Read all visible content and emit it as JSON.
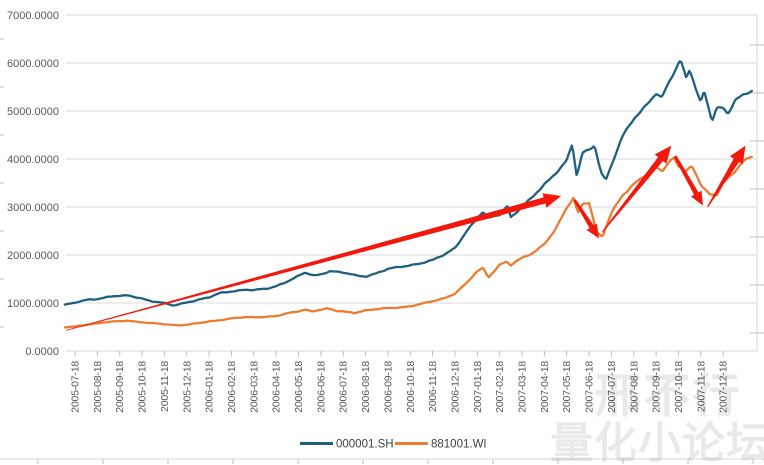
{
  "chart_data": {
    "type": "line",
    "title": "",
    "xlabel": "",
    "ylabel": "",
    "ylim": [
      0,
      7000
    ],
    "grid": "horizontal",
    "y_tick_labels": [
      "0.0000",
      "1000.0000",
      "2000.0000",
      "3000.0000",
      "4000.0000",
      "5000.0000",
      "6000.0000",
      "7000.0000"
    ],
    "x_tick_labels": [
      "2005-07-18",
      "2005-08-18",
      "2005-09-18",
      "2005-10-18",
      "2005-11-18",
      "2005-12-18",
      "2006-01-18",
      "2006-02-18",
      "2006-03-18",
      "2006-04-18",
      "2006-05-18",
      "2006-06-18",
      "2006-07-18",
      "2006-08-18",
      "2006-09-18",
      "2006-10-18",
      "2006-11-18",
      "2006-12-18",
      "2007-01-18",
      "2007-02-18",
      "2007-03-18",
      "2007-04-18",
      "2007-05-18",
      "2007-06-18",
      "2007-07-18",
      "2007-08-18",
      "2007-09-18",
      "2007-10-18",
      "2007-11-18",
      "2007-12-18"
    ],
    "series": [
      {
        "name": "000001.SH",
        "color": "#1F5F7F",
        "points": [
          [
            -0.45,
            960
          ],
          [
            0,
            1000
          ],
          [
            0.6,
            1075
          ],
          [
            1,
            1090
          ],
          [
            1.6,
            1135
          ],
          [
            2,
            1140
          ],
          [
            2.4,
            1155
          ],
          [
            3,
            1100
          ],
          [
            3.5,
            1030
          ],
          [
            4,
            990
          ],
          [
            4.4,
            945
          ],
          [
            5,
            1020
          ],
          [
            6,
            1110
          ],
          [
            6.5,
            1210
          ],
          [
            7,
            1250
          ],
          [
            7.6,
            1275
          ],
          [
            8,
            1260
          ],
          [
            8.6,
            1300
          ],
          [
            9,
            1360
          ],
          [
            9.5,
            1450
          ],
          [
            10,
            1555
          ],
          [
            10.3,
            1625
          ],
          [
            10.7,
            1575
          ],
          [
            11,
            1605
          ],
          [
            11.4,
            1670
          ],
          [
            12,
            1625
          ],
          [
            12.6,
            1570
          ],
          [
            13,
            1560
          ],
          [
            13.5,
            1625
          ],
          [
            14,
            1700
          ],
          [
            14.5,
            1745
          ],
          [
            15,
            1795
          ],
          [
            15.5,
            1835
          ],
          [
            16,
            1885
          ],
          [
            16.5,
            1995
          ],
          [
            17,
            2155
          ],
          [
            17.5,
            2490
          ],
          [
            18,
            2755
          ],
          [
            18.25,
            2885
          ],
          [
            18.5,
            2760
          ],
          [
            19,
            2855
          ],
          [
            19.35,
            3040
          ],
          [
            19.5,
            2790
          ],
          [
            20,
            2985
          ],
          [
            20.5,
            3210
          ],
          [
            21,
            3485
          ],
          [
            21.5,
            3710
          ],
          [
            22,
            3955
          ],
          [
            22.25,
            4285
          ],
          [
            22.45,
            3625
          ],
          [
            22.7,
            4125
          ],
          [
            23,
            4205
          ],
          [
            23.25,
            4300
          ],
          [
            23.55,
            3715
          ],
          [
            23.75,
            3560
          ],
          [
            24,
            3855
          ],
          [
            24.5,
            4460
          ],
          [
            25,
            4855
          ],
          [
            25.5,
            5105
          ],
          [
            26,
            5355
          ],
          [
            26.25,
            5245
          ],
          [
            26.55,
            5560
          ],
          [
            27,
            6000
          ],
          [
            27.1,
            6080
          ],
          [
            27.35,
            5705
          ],
          [
            27.5,
            5900
          ],
          [
            27.75,
            5510
          ],
          [
            28,
            5160
          ],
          [
            28.15,
            5400
          ],
          [
            28.5,
            4770
          ],
          [
            28.7,
            5050
          ],
          [
            29,
            5075
          ],
          [
            29.2,
            4960
          ],
          [
            29.55,
            5255
          ],
          [
            29.9,
            5330
          ],
          [
            30.3,
            5400
          ]
        ]
      },
      {
        "name": "881001.WI",
        "color": "#EC7C30",
        "points": [
          [
            -0.45,
            490
          ],
          [
            0,
            510
          ],
          [
            0.6,
            560
          ],
          [
            1,
            575
          ],
          [
            1.6,
            605
          ],
          [
            2,
            620
          ],
          [
            2.3,
            640
          ],
          [
            3,
            600
          ],
          [
            3.5,
            570
          ],
          [
            4,
            558
          ],
          [
            4.6,
            542
          ],
          [
            5,
            548
          ],
          [
            5.6,
            580
          ],
          [
            6,
            612
          ],
          [
            6.5,
            650
          ],
          [
            7,
            682
          ],
          [
            7.6,
            697
          ],
          [
            8,
            702
          ],
          [
            8.5,
            716
          ],
          [
            9,
            732
          ],
          [
            9.5,
            778
          ],
          [
            10,
            822
          ],
          [
            10.3,
            866
          ],
          [
            10.6,
            832
          ],
          [
            11,
            866
          ],
          [
            11.3,
            882
          ],
          [
            11.7,
            828
          ],
          [
            12,
            820
          ],
          [
            12.5,
            800
          ],
          [
            13,
            850
          ],
          [
            13.5,
            866
          ],
          [
            14,
            890
          ],
          [
            14.5,
            912
          ],
          [
            15,
            936
          ],
          [
            15.5,
            976
          ],
          [
            16,
            1032
          ],
          [
            16.5,
            1102
          ],
          [
            17,
            1202
          ],
          [
            17.5,
            1402
          ],
          [
            18,
            1652
          ],
          [
            18.25,
            1728
          ],
          [
            18.5,
            1542
          ],
          [
            19,
            1802
          ],
          [
            19.3,
            1862
          ],
          [
            19.5,
            1782
          ],
          [
            20,
            1930
          ],
          [
            20.5,
            2052
          ],
          [
            21,
            2242
          ],
          [
            21.5,
            2522
          ],
          [
            22,
            2972
          ],
          [
            22.3,
            3182
          ],
          [
            22.5,
            2892
          ],
          [
            22.75,
            3098
          ],
          [
            23,
            3102
          ],
          [
            23.35,
            2460
          ],
          [
            23.6,
            2372
          ],
          [
            24,
            2868
          ],
          [
            24.5,
            3252
          ],
          [
            25,
            3492
          ],
          [
            25.5,
            3652
          ],
          [
            26,
            3802
          ],
          [
            26.3,
            3752
          ],
          [
            26.6,
            3972
          ],
          [
            26.8,
            4032
          ],
          [
            27,
            3872
          ],
          [
            27.3,
            3755
          ],
          [
            27.6,
            3832
          ],
          [
            28,
            3452
          ],
          [
            28.4,
            3262
          ],
          [
            28.7,
            3242
          ],
          [
            29,
            3552
          ],
          [
            29.5,
            3702
          ],
          [
            29.9,
            3952
          ],
          [
            30.3,
            4032
          ]
        ]
      }
    ],
    "annotations": {
      "color": "#F2190C",
      "arrows": [
        {
          "from": [
            -0.4,
            430
          ],
          "to": [
            21.75,
            3230
          ],
          "tail": 0.8,
          "head": 15
        },
        {
          "from": [
            22.35,
            3150
          ],
          "to": [
            23.45,
            2345
          ],
          "tail": 2.5,
          "head": 12
        },
        {
          "from": [
            23.6,
            2480
          ],
          "to": [
            26.68,
            4280
          ],
          "tail": 1.2,
          "head": 15
        },
        {
          "from": [
            26.85,
            4060
          ],
          "to": [
            28.1,
            3030
          ],
          "tail": 3.0,
          "head": 12
        },
        {
          "from": [
            28.3,
            3000
          ],
          "to": [
            30.0,
            4280
          ],
          "tail": 1.2,
          "head": 15
        }
      ]
    },
    "legend": {
      "position": "bottom-center",
      "entries": [
        "000001.SH",
        "881001.WI"
      ]
    }
  },
  "watermark": {
    "line1": "邢不行",
    "line2": "量化小论坛"
  },
  "colors": {
    "background": "#FFFFFF",
    "grid": "#D9D9D9",
    "tick": "#BFBFBF",
    "axis_label": "#595959",
    "legend_text": "#404040",
    "watermark": "rgba(0,0,0,0.088)"
  }
}
